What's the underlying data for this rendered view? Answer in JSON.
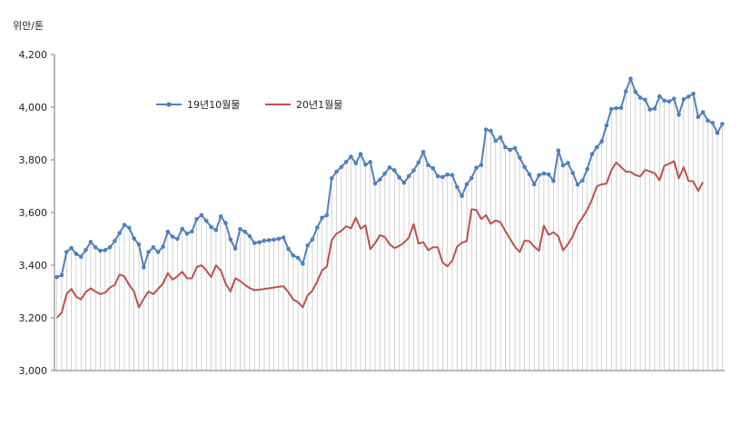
{
  "chart_data": {
    "type": "line",
    "title": "",
    "ylabel": "위안/톤",
    "ylim": [
      3000,
      4200
    ],
    "yticks": [
      "3,000",
      "3,200",
      "3,400",
      "3,600",
      "3,800",
      "4,000",
      "4,200"
    ],
    "grid": false,
    "legend_position": "top-left",
    "series": [
      {
        "name": "19년10월물",
        "color": "#4f81bd",
        "markers": true,
        "values": [
          3355,
          3362,
          3450,
          3465,
          3443,
          3432,
          3458,
          3488,
          3468,
          3455,
          3457,
          3468,
          3492,
          3522,
          3553,
          3542,
          3501,
          3479,
          3392,
          3450,
          3468,
          3450,
          3470,
          3527,
          3508,
          3500,
          3538,
          3520,
          3528,
          3575,
          3590,
          3568,
          3545,
          3533,
          3585,
          3560,
          3498,
          3463,
          3537,
          3527,
          3510,
          3484,
          3487,
          3493,
          3495,
          3497,
          3500,
          3505,
          3462,
          3437,
          3428,
          3405,
          3475,
          3498,
          3543,
          3580,
          3590,
          3730,
          3755,
          3773,
          3792,
          3812,
          3787,
          3822,
          3782,
          3792,
          3710,
          3725,
          3748,
          3771,
          3760,
          3733,
          3713,
          3738,
          3760,
          3790,
          3830,
          3780,
          3768,
          3738,
          3735,
          3744,
          3742,
          3697,
          3663,
          3707,
          3731,
          3770,
          3780,
          3915,
          3910,
          3872,
          3885,
          3848,
          3838,
          3845,
          3808,
          3773,
          3745,
          3707,
          3742,
          3748,
          3745,
          3720,
          3835,
          3779,
          3788,
          3750,
          3706,
          3721,
          3765,
          3822,
          3848,
          3870,
          3931,
          3993,
          3996,
          3997,
          4060,
          4108,
          4058,
          4036,
          4028,
          3991,
          3995,
          4041,
          4025,
          4022,
          4032,
          3971,
          4030,
          4040,
          4051,
          3963,
          3981,
          3949,
          3940,
          3902,
          3936
        ]
      },
      {
        "name": "20년1월물",
        "color": "#c0504d",
        "markers": false,
        "values": [
          3200,
          3220,
          3290,
          3310,
          3280,
          3270,
          3298,
          3312,
          3300,
          3290,
          3296,
          3315,
          3325,
          3365,
          3357,
          3325,
          3300,
          3240,
          3272,
          3300,
          3290,
          3310,
          3330,
          3370,
          3345,
          3358,
          3375,
          3350,
          3350,
          3392,
          3400,
          3380,
          3355,
          3400,
          3380,
          3330,
          3300,
          3350,
          3340,
          3325,
          3313,
          3305,
          3307,
          3310,
          3312,
          3315,
          3318,
          3320,
          3298,
          3270,
          3260,
          3240,
          3285,
          3303,
          3339,
          3380,
          3395,
          3495,
          3520,
          3530,
          3548,
          3540,
          3580,
          3538,
          3551,
          3461,
          3483,
          3514,
          3507,
          3480,
          3465,
          3473,
          3485,
          3505,
          3556,
          3482,
          3487,
          3457,
          3468,
          3468,
          3410,
          3396,
          3416,
          3470,
          3485,
          3492,
          3612,
          3610,
          3575,
          3590,
          3557,
          3570,
          3563,
          3530,
          3500,
          3470,
          3450,
          3493,
          3491,
          3470,
          3455,
          3550,
          3515,
          3525,
          3510,
          3456,
          3480,
          3510,
          3554,
          3580,
          3610,
          3650,
          3700,
          3707,
          3710,
          3760,
          3790,
          3773,
          3755,
          3754,
          3742,
          3737,
          3762,
          3756,
          3749,
          3722,
          3778,
          3785,
          3795,
          3730,
          3772,
          3720,
          3718,
          3682,
          3715
        ]
      }
    ]
  }
}
